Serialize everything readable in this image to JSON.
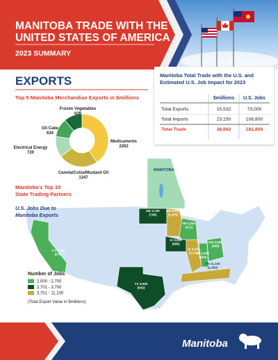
{
  "header": {
    "title": [
      "MANITOBA TRADE WITH THE",
      "UNITED STATES OF AMERICA"
    ],
    "subtitle": "2023 SUMMARY"
  },
  "exports": {
    "heading": "EXPORTS"
  },
  "chart_data": {
    "type": "donut",
    "title": "Top 5 Manitoba Merchandise Exports in $millions",
    "categories": [
      "Medicaments",
      "Canola/Colza/Mustard Oil",
      "Electrical Energy",
      "Oil Cake",
      "Frozen Vegetables"
    ],
    "values": [
      2262,
      1347,
      720,
      634,
      628
    ],
    "colors": [
      "#f5c842",
      "#c8b43c",
      "#a9dcb4",
      "#3fa65a",
      "#17693a"
    ]
  },
  "table": {
    "title": [
      "Manitoba Total Trade with the U.S. and",
      "Estimated U.S. Job Impact for 2023"
    ],
    "header": [
      "$millions",
      "U.S. Jobs"
    ],
    "rows": [
      [
        "Total Exports",
        "15,532",
        "73,000"
      ],
      [
        "Total Imports",
        "23,150",
        "108,800"
      ],
      [
        "Total Trade",
        "38,682",
        "181,800"
      ]
    ]
  },
  "map": {
    "title": [
      "Manitoba's Top 10",
      "State Trading Partners"
    ],
    "subtitle": [
      "U.S. Jobs Due to",
      "Manitoba Exports"
    ],
    "province_label": "MANITOBA",
    "states": [
      {
        "label": "ND 3,700",
        "value": "(796)",
        "color": "#0e4d27"
      },
      {
        "label": "MN 8,800",
        "value": "(1,875)",
        "color": "#c9a83a"
      },
      {
        "label": "WI 2,200",
        "value": "(472)",
        "color": "#4caf5a"
      },
      {
        "label": "IA 3,200",
        "value": "(686)",
        "color": "#0e4d27"
      },
      {
        "label": "IL 5,100",
        "value": "(1,115)",
        "color": "#c9a83a"
      },
      {
        "label": "IN 2,300",
        "value": "(484)",
        "color": "#4caf5a"
      },
      {
        "label": "OH 2,200",
        "value": "(458)",
        "color": "#4caf5a"
      },
      {
        "label": "TN 11,100",
        "value": "(2,362)",
        "color": "#c9a83a"
      },
      {
        "label": "CA 2,700",
        "value": "(579)",
        "color": "#4caf5a"
      },
      {
        "label": "TX 3,000",
        "value": "(642)",
        "color": "#0e4d27"
      }
    ],
    "legend": {
      "title": "Number of Jobs",
      "items": [
        {
          "label": "2,000 - 2,700",
          "color": "#4caf5a"
        },
        {
          "label": "2,701 - 3,700",
          "color": "#0e4d27"
        },
        {
          "label": "3,701 - 11,100",
          "color": "#c9a83a"
        }
      ],
      "note": "(Total Export Value in $millions)"
    }
  },
  "footer": {
    "brand": "Manitoba"
  }
}
